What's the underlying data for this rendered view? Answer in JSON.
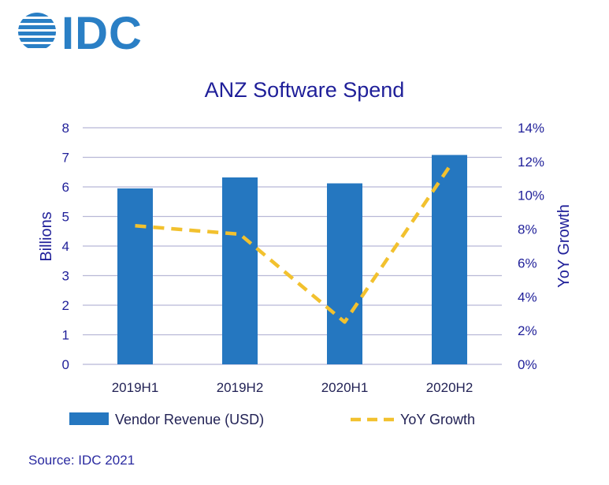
{
  "logo": {
    "text": "IDC"
  },
  "source": "Source: IDC 2021",
  "colors": {
    "bar": "#2577c0",
    "line": "#f2c12e",
    "axis_text": "#1f1f99",
    "grid": "#b8b8d6",
    "logo": "#2a7fc5"
  },
  "chart_data": {
    "type": "bar",
    "title": "ANZ Software Spend",
    "categories": [
      "2019H1",
      "2019H2",
      "2020H1",
      "2020H2"
    ],
    "ylabel": "Billions",
    "ylim": [
      0,
      8
    ],
    "yticks": [
      "0",
      "1",
      "2",
      "3",
      "4",
      "5",
      "6",
      "7",
      "8"
    ],
    "y2label": "YoY Growth",
    "y2lim": [
      0,
      14
    ],
    "y2ticks": [
      "0%",
      "2%",
      "4%",
      "6%",
      "8%",
      "10%",
      "12%",
      "14%"
    ],
    "grid": true,
    "legend_position": "bottom",
    "series": [
      {
        "name": "Vendor Revenue (USD)",
        "type": "bar",
        "axis": "left",
        "values": [
          5.95,
          6.32,
          6.12,
          7.08
        ]
      },
      {
        "name": "YoY Growth",
        "type": "line",
        "style": "dashed",
        "axis": "right",
        "values": [
          8.2,
          7.7,
          2.5,
          11.7
        ]
      }
    ]
  }
}
